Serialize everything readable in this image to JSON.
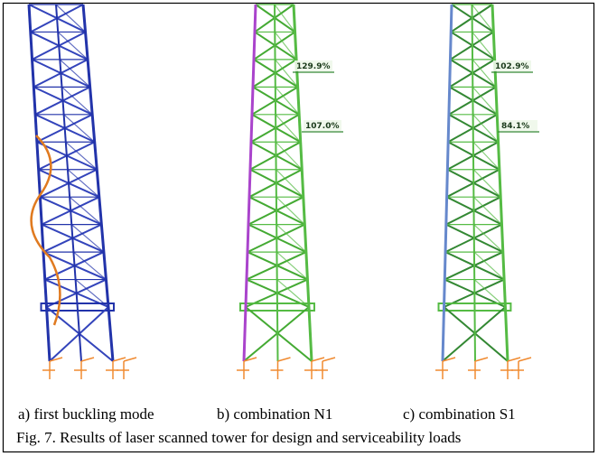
{
  "panels": [
    {
      "label": "a) first buckling mode",
      "annotations": []
    },
    {
      "label": "b) combination N1",
      "annotations": [
        "129.9%",
        "107.0%"
      ]
    },
    {
      "label": "c) combination S1",
      "annotations": [
        "102.9%",
        "84.1%"
      ]
    }
  ],
  "caption": "Fig. 7. Results of laser scanned tower for design and serviceability loads"
}
